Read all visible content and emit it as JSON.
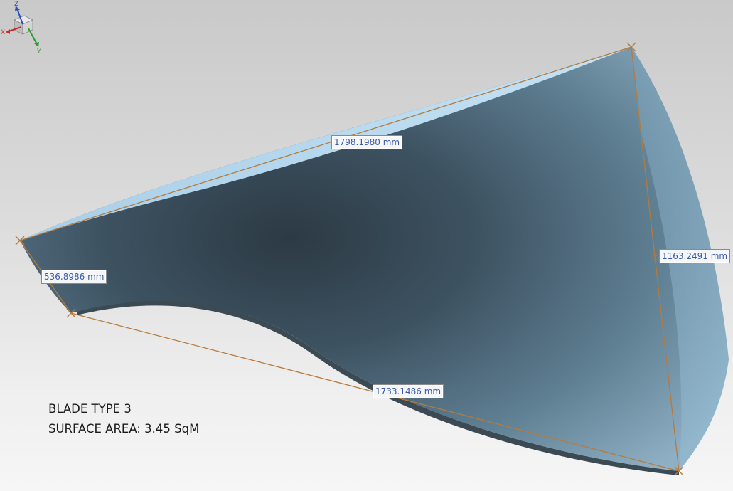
{
  "viewport": {
    "background_top": "#c9c9c9",
    "background_bottom": "#f6f6f6",
    "accent_measure": "#b77a3c",
    "label_text": "#3a5aa8"
  },
  "dimensions": {
    "top": "1798.1980 mm",
    "right": "1163.2491 mm",
    "left": "536.8986 mm",
    "bottom": "1733.1486 mm"
  },
  "annotation": {
    "title": "BLADE TYPE 3",
    "surface_area": "SURFACE AREA: 3.45 SqM"
  },
  "axis_triad": {
    "x": "X",
    "y": "Y",
    "z": "Z"
  }
}
